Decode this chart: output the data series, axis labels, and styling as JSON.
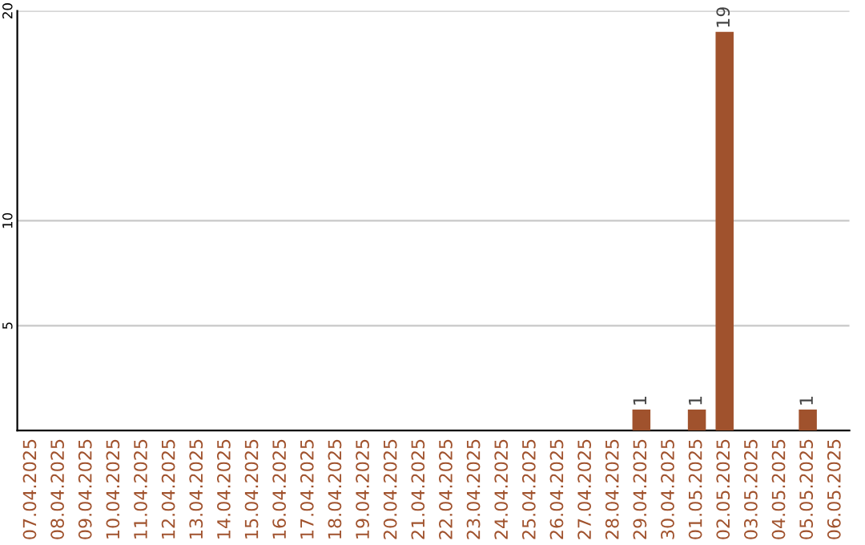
{
  "chart_data": {
    "type": "bar",
    "categories": [
      "07.04.2025",
      "08.04.2025",
      "09.04.2025",
      "10.04.2025",
      "11.04.2025",
      "12.04.2025",
      "13.04.2025",
      "14.04.2025",
      "15.04.2025",
      "16.04.2025",
      "17.04.2025",
      "18.04.2025",
      "19.04.2025",
      "20.04.2025",
      "21.04.2025",
      "22.04.2025",
      "23.04.2025",
      "24.04.2025",
      "25.04.2025",
      "26.04.2025",
      "27.04.2025",
      "28.04.2025",
      "29.04.2025",
      "30.04.2025",
      "01.05.2025",
      "02.05.2025",
      "03.05.2025",
      "04.05.2025",
      "05.05.2025",
      "06.05.2025"
    ],
    "values": [
      0,
      0,
      0,
      0,
      0,
      0,
      0,
      0,
      0,
      0,
      0,
      0,
      0,
      0,
      0,
      0,
      0,
      0,
      0,
      0,
      0,
      0,
      1,
      0,
      1,
      19,
      0,
      0,
      1,
      0
    ],
    "value_labels": [
      null,
      null,
      null,
      null,
      null,
      null,
      null,
      null,
      null,
      null,
      null,
      null,
      null,
      null,
      null,
      null,
      null,
      null,
      null,
      null,
      null,
      null,
      "1",
      null,
      "1",
      "19",
      null,
      null,
      "1",
      null
    ],
    "color": "#a0522d",
    "ylim": [
      0,
      20
    ],
    "yticks": [
      5,
      10,
      20
    ],
    "grid": "y",
    "legend": false
  }
}
